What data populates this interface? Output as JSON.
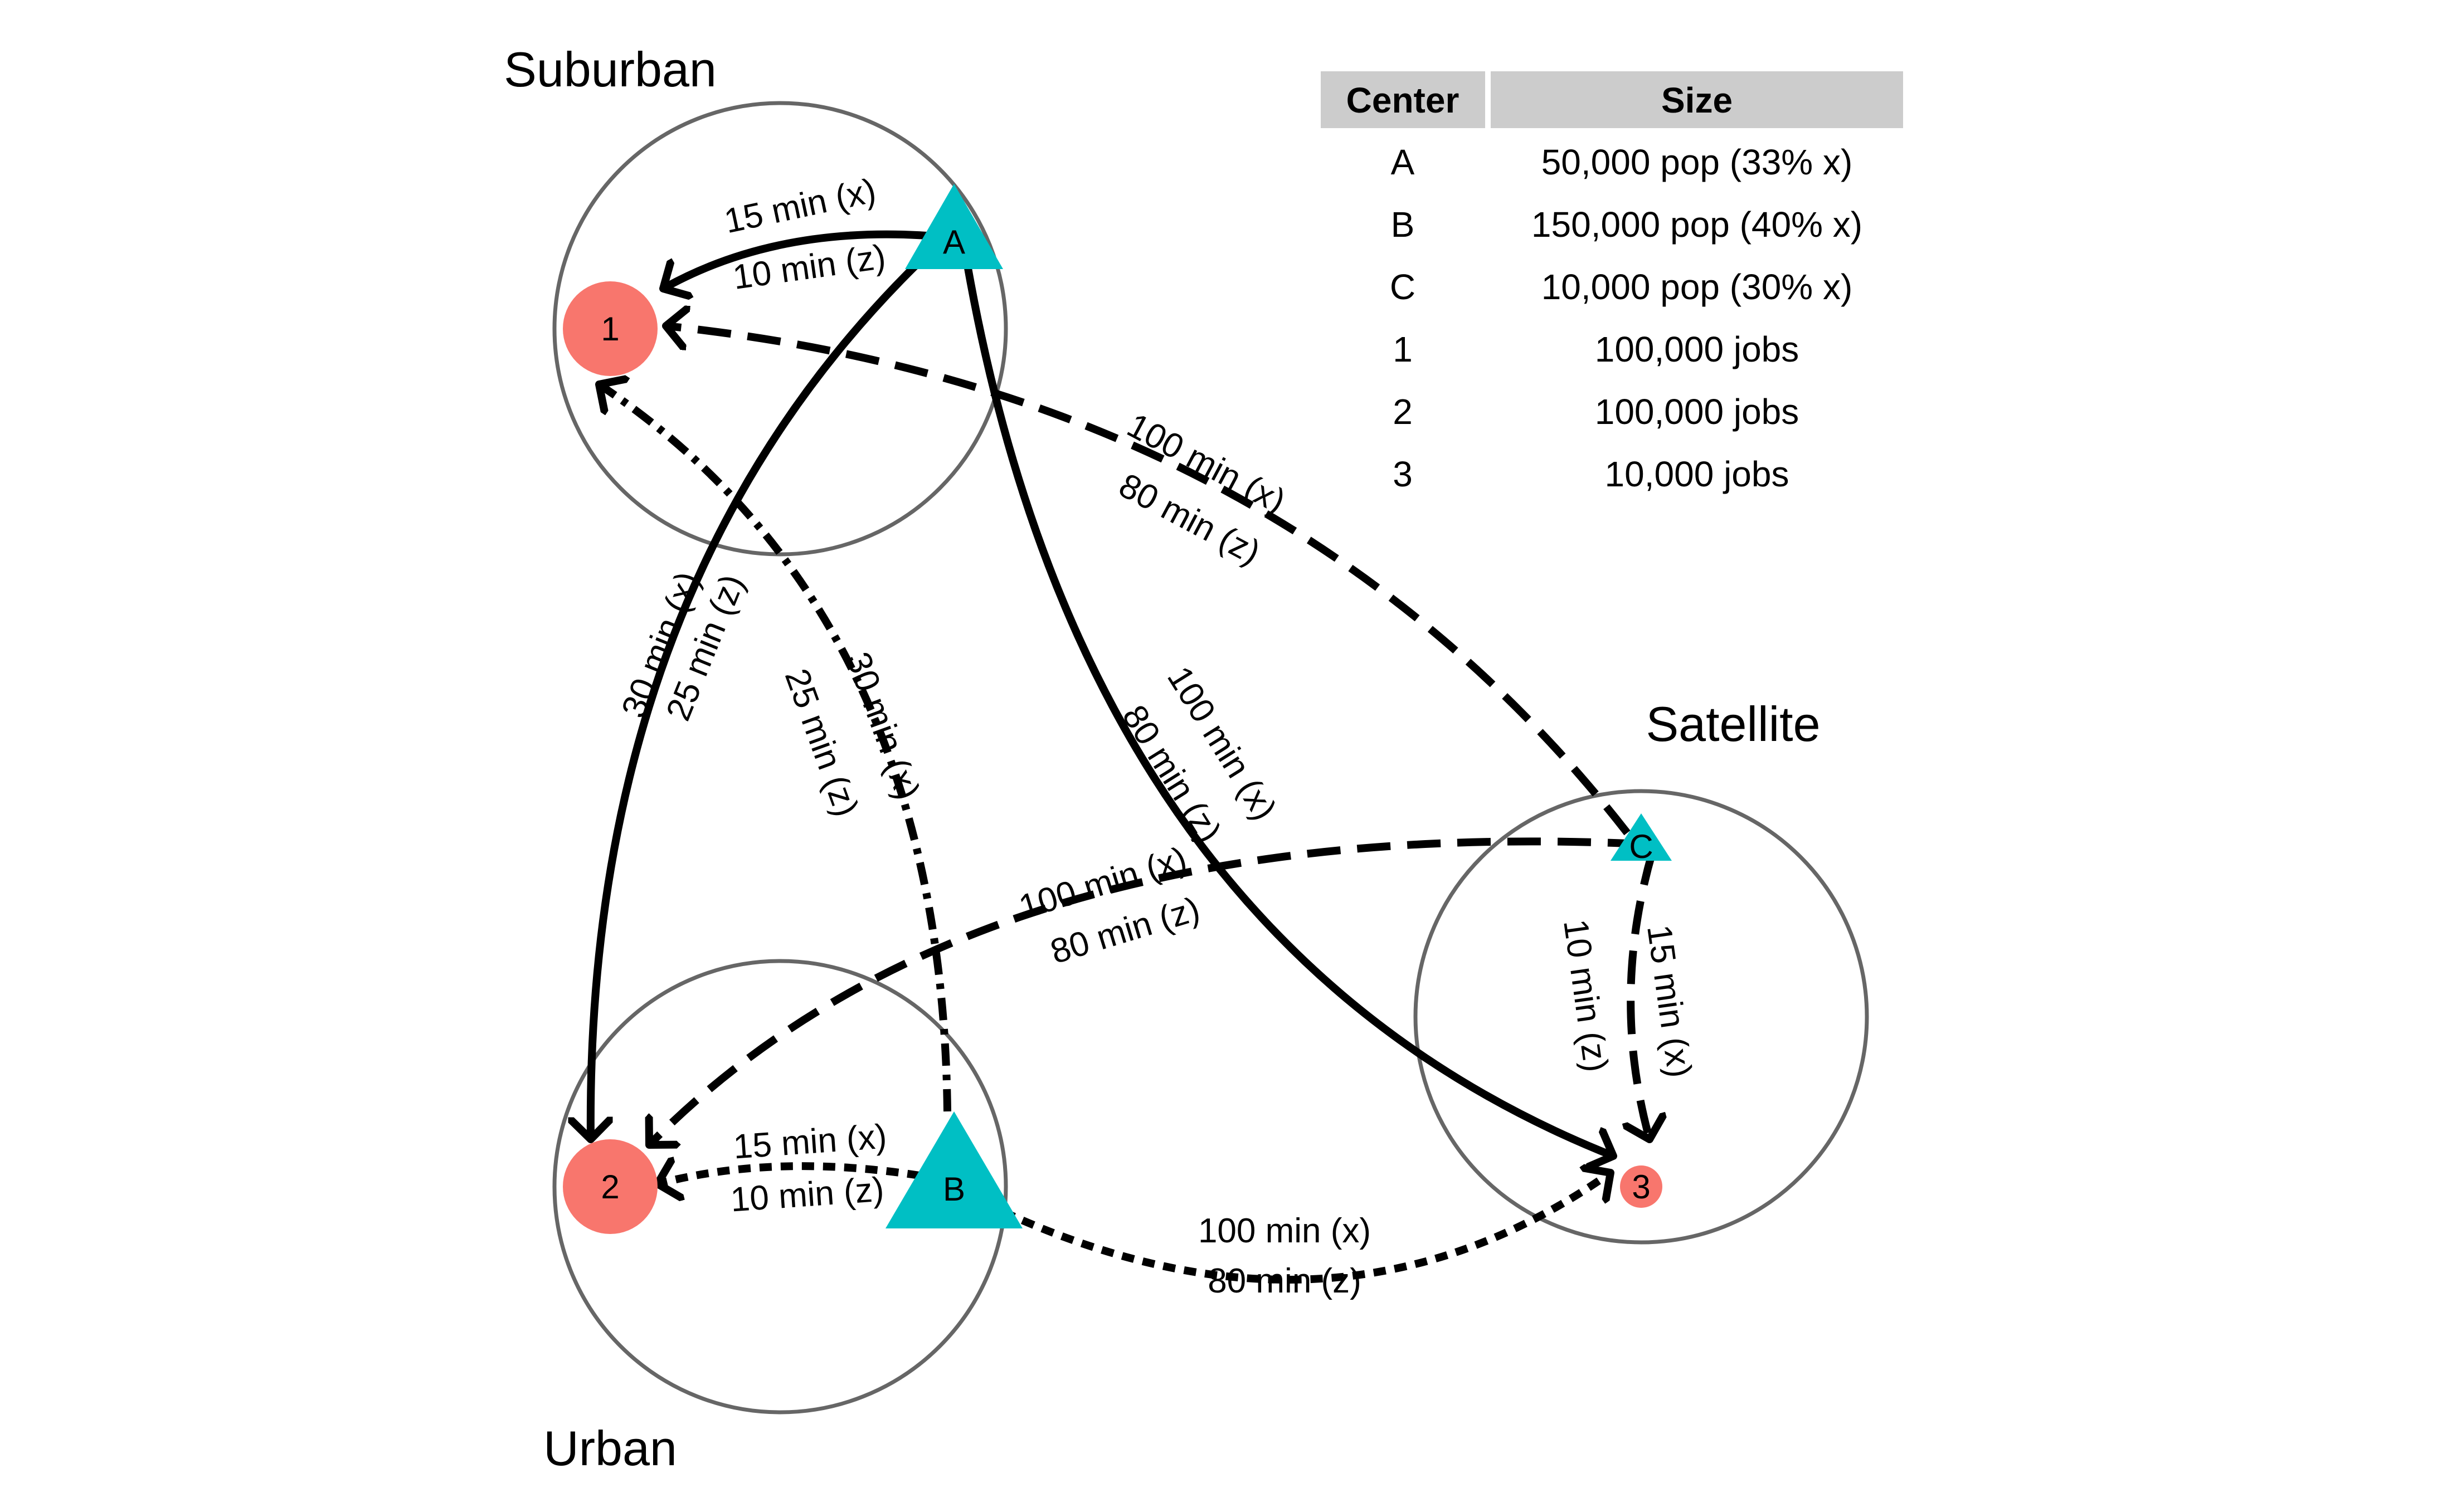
{
  "regions": [
    {
      "id": "suburban",
      "label": "Suburban"
    },
    {
      "id": "satellite",
      "label": "Satellite"
    },
    {
      "id": "urban",
      "label": "Urban"
    }
  ],
  "centers": [
    {
      "id": "A",
      "label": "A",
      "kind": "population",
      "shape": "triangle"
    },
    {
      "id": "B",
      "label": "B",
      "kind": "population",
      "shape": "triangle"
    },
    {
      "id": "C",
      "label": "C",
      "kind": "population",
      "shape": "triangle"
    },
    {
      "id": "1",
      "label": "1",
      "kind": "jobs",
      "shape": "circle"
    },
    {
      "id": "2",
      "label": "2",
      "kind": "jobs",
      "shape": "circle"
    },
    {
      "id": "3",
      "label": "3",
      "kind": "jobs",
      "shape": "circle"
    }
  ],
  "routes": [
    {
      "from": "A",
      "to": "1",
      "line_style": "solid",
      "label_x": "15 min (x)",
      "label_z": "10 min (z)"
    },
    {
      "from": "A",
      "to": "2",
      "line_style": "solid",
      "label_x": "30 min (x)",
      "label_z": "25 min (z)"
    },
    {
      "from": "A",
      "to": "3",
      "line_style": "solid",
      "label_x": "100 min (x)",
      "label_z": "80 min (z)"
    },
    {
      "from": "C",
      "to": "1",
      "line_style": "long-dash",
      "label_x": "100 min (x)",
      "label_z": "80 min (z)"
    },
    {
      "from": "C",
      "to": "2",
      "line_style": "long-dash",
      "label_x": "100 min (x)",
      "label_z": "80 min (z)"
    },
    {
      "from": "C",
      "to": "3",
      "line_style": "long-dash",
      "label_x": "15 min (x)",
      "label_z": "10 min (z)"
    },
    {
      "from": "B",
      "to": "1",
      "line_style": "dash-dot",
      "label_x": "30 min (x)",
      "label_z": "25 min (z)"
    },
    {
      "from": "B",
      "to": "2",
      "line_style": "short-dash",
      "label_x": "15 min (x)",
      "label_z": "10 min (z)"
    },
    {
      "from": "B",
      "to": "3",
      "line_style": "short-dash",
      "label_x": "100 min (x)",
      "label_z": "80 min (z)"
    }
  ],
  "table": {
    "headers": [
      "Center",
      "Size"
    ],
    "rows": [
      [
        "A",
        "50,000 pop (33% x)"
      ],
      [
        "B",
        "150,000 pop (40% x)"
      ],
      [
        "C",
        "10,000 pop (30% x)"
      ],
      [
        "1",
        "100,000 jobs"
      ],
      [
        "2",
        "100,000 jobs"
      ],
      [
        "3",
        "10,000 jobs"
      ]
    ]
  },
  "colors": {
    "population_center": "#00BFC4",
    "job_center": "#F8766D",
    "region_outline": "#666666",
    "route": "#000000",
    "table_header_bg": "#CCCCCC"
  }
}
